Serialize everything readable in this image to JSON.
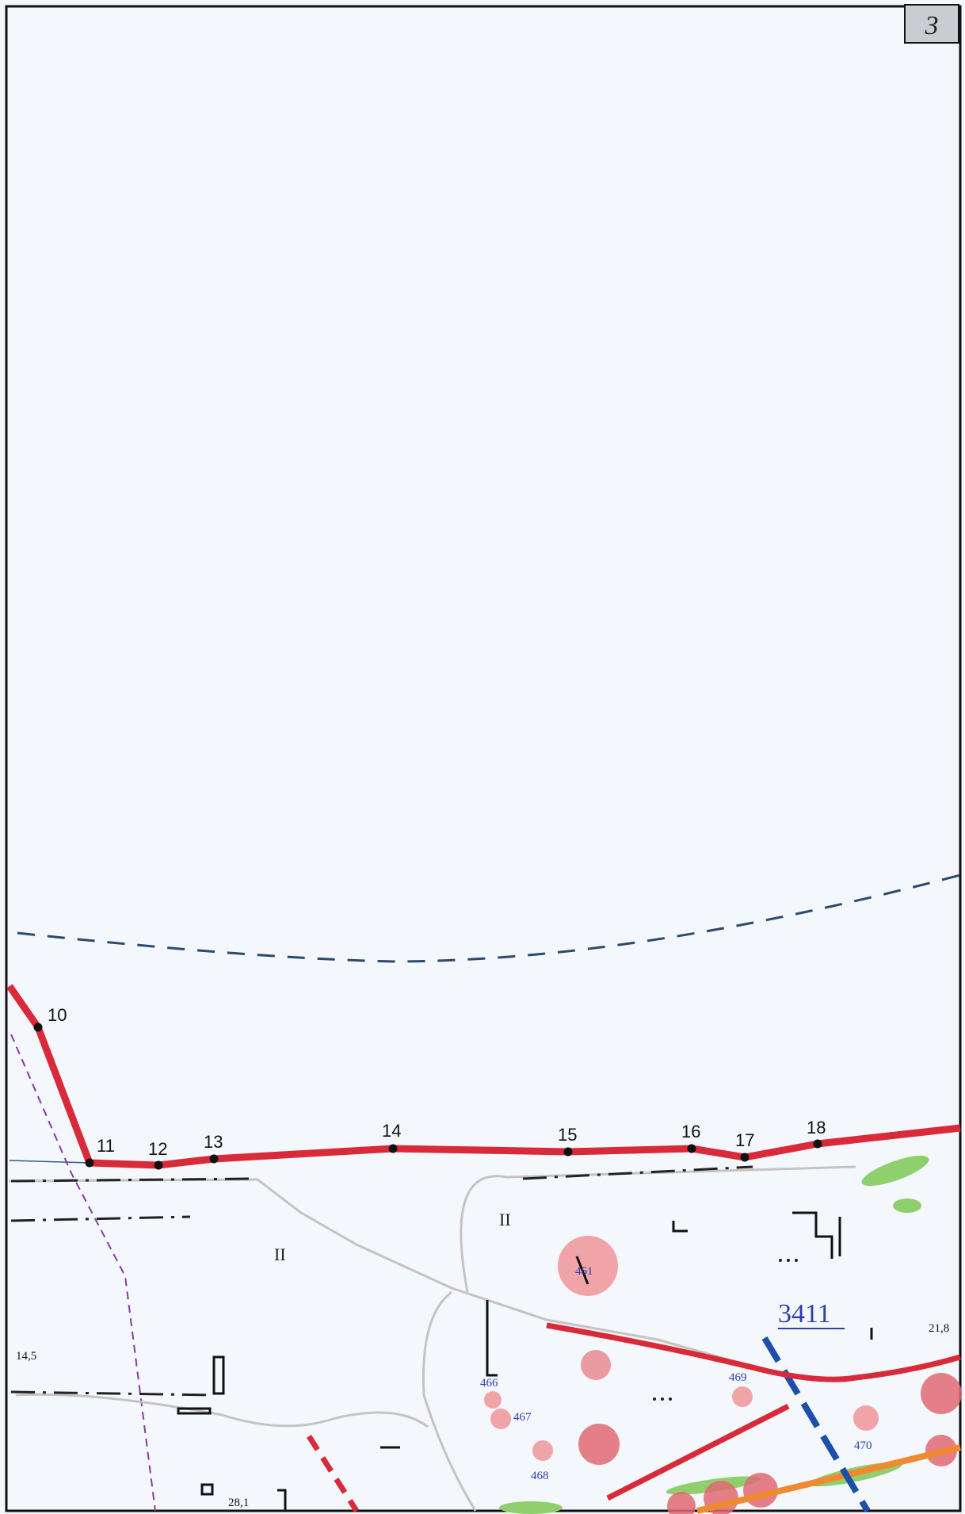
{
  "sheet": {
    "number": "3"
  },
  "boundary_points": [
    {
      "id": "10",
      "label": "10"
    },
    {
      "id": "11",
      "label": "11"
    },
    {
      "id": "12",
      "label": "12"
    },
    {
      "id": "13",
      "label": "13"
    },
    {
      "id": "14",
      "label": "14"
    },
    {
      "id": "15",
      "label": "15"
    },
    {
      "id": "16",
      "label": "16"
    },
    {
      "id": "17",
      "label": "17"
    },
    {
      "id": "18",
      "label": "18"
    }
  ],
  "parcel": {
    "number": "3411"
  },
  "zone_labels": {
    "left": "II",
    "center": "II"
  },
  "elevations": {
    "left": "14,5",
    "right": "21,8",
    "bottom": "28,1"
  },
  "object_numbers": {
    "n466": "466",
    "n467": "467",
    "n468": "468",
    "n469": "469",
    "n470": "470",
    "n471": "461"
  },
  "colors": {
    "boundary": "#d92a3a",
    "zone_line": "#2c4a6e",
    "road": "#c8c2c2",
    "water_dash": "#1e4fa8",
    "forest": "#8fcf6e",
    "heritage": "#f0a4a8",
    "orange_line": "#f08a30"
  }
}
